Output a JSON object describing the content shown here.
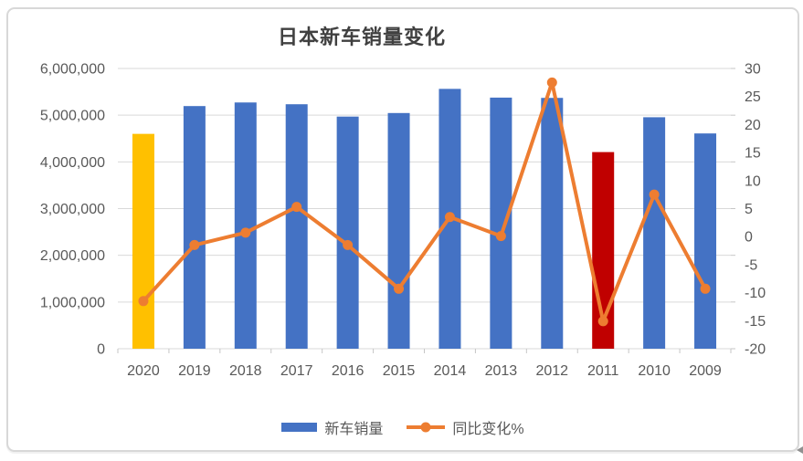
{
  "chart": {
    "title": "日本新车销量变化",
    "legend": [
      {
        "label": "新车销量",
        "marker": "bar-swatch"
      },
      {
        "label": "同比变化%",
        "marker": "line-dot-swatch"
      }
    ],
    "colors": {
      "bar": "#4472C4",
      "bar_highlight_2020": "#FFC000",
      "bar_highlight_2011": "#C00000",
      "line": "#ED7D31",
      "grid": "#D9D9D9",
      "tick": "#C6C6C6",
      "axis_text": "#595959",
      "title_text": "#404040",
      "card_border": "#D8D8D8"
    }
  },
  "chart_data": {
    "type": "bar",
    "subtype": "combo-bar-line-dual-axis",
    "title": "日本新车销量变化",
    "categories": [
      "2020",
      "2019",
      "2018",
      "2017",
      "2016",
      "2015",
      "2014",
      "2013",
      "2012",
      "2011",
      "2010",
      "2009"
    ],
    "series": [
      {
        "name": "新车销量",
        "type": "bar",
        "axis": "left",
        "values": [
          4600000,
          5195000,
          5272000,
          5234000,
          4970000,
          5046000,
          5563000,
          5376000,
          5370000,
          4210000,
          4956000,
          4609000
        ],
        "point_colors": [
          "#FFC000",
          "#4472C4",
          "#4472C4",
          "#4472C4",
          "#4472C4",
          "#4472C4",
          "#4472C4",
          "#4472C4",
          "#4472C4",
          "#C00000",
          "#4472C4",
          "#4472C4"
        ]
      },
      {
        "name": "同比变化%",
        "type": "line",
        "axis": "right",
        "values": [
          -11.5,
          -1.5,
          0.7,
          5.3,
          -1.5,
          -9.3,
          3.5,
          0.1,
          27.5,
          -15.1,
          7.5,
          -9.3
        ],
        "color": "#ED7D31"
      }
    ],
    "left_axis": {
      "min": 0,
      "max": 6000000,
      "step": 1000000,
      "tick_labels_top_to_bottom": [
        "6,000,000",
        "5,000,000",
        "4,000,000",
        "3,000,000",
        "2,000,000",
        "1,000,000",
        "0"
      ]
    },
    "right_axis": {
      "min": -20,
      "max": 30,
      "step": 5,
      "tick_labels_top_to_bottom": [
        "30",
        "25",
        "20",
        "15",
        "10",
        "5",
        "0",
        "-5",
        "-10",
        "-15",
        "-20"
      ]
    },
    "grid": true,
    "legend_position": "bottom"
  }
}
